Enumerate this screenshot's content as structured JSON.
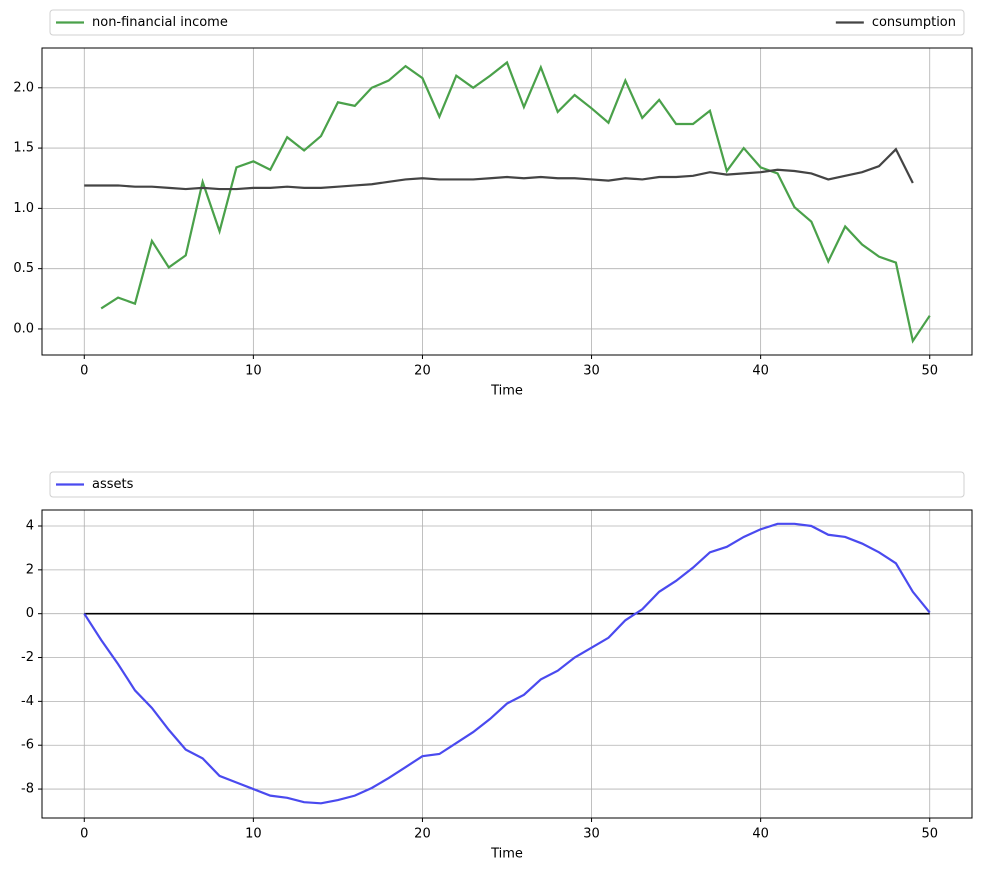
{
  "chart_data": [
    {
      "type": "line",
      "xlabel": "Time",
      "x": [
        0,
        1,
        2,
        3,
        4,
        5,
        6,
        7,
        8,
        9,
        10,
        11,
        12,
        13,
        14,
        15,
        16,
        17,
        18,
        19,
        20,
        21,
        22,
        23,
        24,
        25,
        26,
        27,
        28,
        29,
        30,
        31,
        32,
        33,
        34,
        35,
        36,
        37,
        38,
        39,
        40,
        41,
        42,
        43,
        44,
        45,
        46,
        47,
        48,
        49,
        50
      ],
      "series": [
        {
          "name": "non-financial income",
          "color": "#4aa14a",
          "values": [
            null,
            0.17,
            0.26,
            0.21,
            0.73,
            0.51,
            0.61,
            1.22,
            0.81,
            1.34,
            1.39,
            1.32,
            1.59,
            1.48,
            1.6,
            1.88,
            1.85,
            2.0,
            2.06,
            2.18,
            2.08,
            1.76,
            2.1,
            2.0,
            2.1,
            2.21,
            1.84,
            2.17,
            1.8,
            1.94,
            1.83,
            1.71,
            2.06,
            1.75,
            1.9,
            1.7,
            1.7,
            1.81,
            1.31,
            1.5,
            1.34,
            1.29,
            1.01,
            0.89,
            0.56,
            0.85,
            0.7,
            0.6,
            0.55,
            -0.1,
            0.11
          ]
        },
        {
          "name": "consumption",
          "color": "#444444",
          "values": [
            1.19,
            1.19,
            1.19,
            1.18,
            1.18,
            1.17,
            1.16,
            1.17,
            1.16,
            1.16,
            1.17,
            1.17,
            1.18,
            1.17,
            1.17,
            1.18,
            1.19,
            1.2,
            1.22,
            1.24,
            1.25,
            1.24,
            1.24,
            1.24,
            1.25,
            1.26,
            1.25,
            1.26,
            1.25,
            1.25,
            1.24,
            1.23,
            1.25,
            1.24,
            1.26,
            1.26,
            1.27,
            1.3,
            1.28,
            1.29,
            1.3,
            1.32,
            1.31,
            1.29,
            1.24,
            1.27,
            1.3,
            1.35,
            1.49,
            1.21,
            null
          ]
        }
      ],
      "xlim": [
        -2.5,
        52.5
      ],
      "xticks": [
        0,
        10,
        20,
        30,
        40,
        50
      ],
      "ylim": [
        -0.216,
        2.33
      ],
      "yticks": [
        {
          "value": 0,
          "label": "0.0"
        },
        0.5,
        {
          "value": 1,
          "label": "1.0"
        },
        1.5,
        {
          "value": 2,
          "label": "2.0"
        }
      ],
      "grid": true,
      "legend": "top-expand"
    },
    {
      "type": "line",
      "xlabel": "Time",
      "x": [
        0,
        1,
        2,
        3,
        4,
        5,
        6,
        7,
        8,
        9,
        10,
        11,
        12,
        13,
        14,
        15,
        16,
        17,
        18,
        19,
        20,
        21,
        22,
        23,
        24,
        25,
        26,
        27,
        28,
        29,
        30,
        31,
        32,
        33,
        34,
        35,
        36,
        37,
        38,
        39,
        40,
        41,
        42,
        43,
        44,
        45,
        46,
        47,
        48,
        49,
        50
      ],
      "series": [
        {
          "name": "assets",
          "color": "#4a4aef",
          "values": [
            0,
            -1.2,
            -2.3,
            -3.5,
            -4.3,
            -5.3,
            -6.2,
            -6.6,
            -7.4,
            -7.7,
            -8.0,
            -8.3,
            -8.4,
            -8.6,
            -8.65,
            -8.5,
            -8.3,
            -7.95,
            -7.5,
            -7.0,
            -6.5,
            -6.4,
            -5.9,
            -5.4,
            -4.8,
            -4.1,
            -3.7,
            -3.0,
            -2.6,
            -2.0,
            -1.55,
            -1.1,
            -0.3,
            0.2,
            1.0,
            1.5,
            2.1,
            2.8,
            3.05,
            3.5,
            3.85,
            4.1,
            4.1,
            4.0,
            3.6,
            3.5,
            3.2,
            2.8,
            2.3,
            1.0,
            0.05
          ]
        }
      ],
      "hline": 0,
      "hline_color": "#000000",
      "xlim": [
        -2.5,
        52.5
      ],
      "xticks": [
        0,
        10,
        20,
        30,
        40,
        50
      ],
      "ylim": [
        -9.32,
        4.73
      ],
      "yticks": [
        -8,
        -6,
        -4,
        -2,
        0,
        2,
        4
      ],
      "grid": true,
      "legend": "top-expand"
    }
  ]
}
